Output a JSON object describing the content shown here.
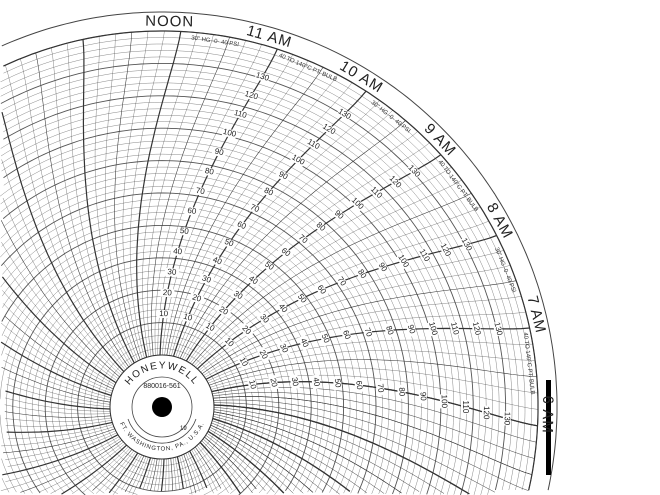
{
  "chart_paper": {
    "brand": "HONEYWELL",
    "part_number": "880016-561",
    "origin": "FT. WASHINGTON, PA., U.S.A.",
    "year_field": "19",
    "time_labels": [
      "6 AM",
      "7 AM",
      "8 AM",
      "9 AM",
      "10 AM",
      "11 AM",
      "NOON"
    ],
    "range_notes": [
      "40 TO 140°C PT. BULB",
      "30\" HG -0- 40 PSI",
      "40 TO 140°C PT. BULB",
      "30\" HG -0- 40 PSI",
      "40 TO 140°C PT. BULB",
      "30\" HG -0- 40 PSI"
    ],
    "scale_labels": [
      "10",
      "20",
      "30",
      "40",
      "50",
      "60",
      "70",
      "80",
      "90",
      "100",
      "110",
      "120",
      "130"
    ],
    "colors": {
      "ink": "#222222",
      "paper": "#ffffff",
      "marker_bar": "#000000"
    }
  }
}
